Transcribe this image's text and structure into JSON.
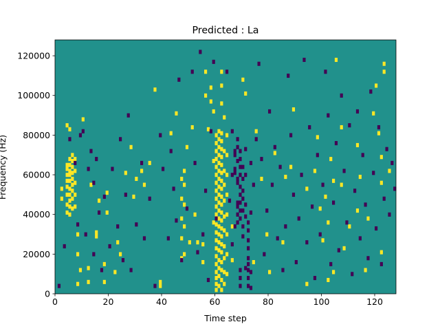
{
  "chart_data": {
    "type": "heatmap",
    "title": "Predicted : La",
    "xlabel": "Time step",
    "ylabel": "Frequency (Hz)",
    "xlim": [
      0,
      128
    ],
    "ylim": [
      0,
      128000
    ],
    "x_ticks": [
      0,
      20,
      40,
      60,
      80,
      100,
      120
    ],
    "y_ticks": [
      0,
      20000,
      40000,
      60000,
      80000,
      100000,
      120000
    ],
    "grid": false,
    "legend": "none",
    "colormap": "viridis",
    "colors": {
      "low": "#440154",
      "mid": "#21918c",
      "high": "#fde725"
    },
    "background_level": 0.5,
    "high_cells": [
      [
        2,
        48
      ],
      [
        2,
        53
      ],
      [
        4,
        41
      ],
      [
        4,
        45
      ],
      [
        4,
        50
      ],
      [
        4,
        54
      ],
      [
        4,
        57
      ],
      [
        4,
        60
      ],
      [
        4,
        63
      ],
      [
        4,
        65
      ],
      [
        4,
        85
      ],
      [
        5,
        40
      ],
      [
        5,
        44
      ],
      [
        5,
        47
      ],
      [
        5,
        50
      ],
      [
        5,
        53
      ],
      [
        5,
        57
      ],
      [
        5,
        60
      ],
      [
        5,
        62
      ],
      [
        5,
        65
      ],
      [
        5,
        68
      ],
      [
        5,
        83
      ],
      [
        6,
        43
      ],
      [
        6,
        48
      ],
      [
        6,
        52
      ],
      [
        6,
        55
      ],
      [
        6,
        58
      ],
      [
        6,
        61
      ],
      [
        6,
        64
      ],
      [
        6,
        67
      ],
      [
        6,
        70
      ],
      [
        7,
        44
      ],
      [
        7,
        50
      ],
      [
        7,
        56
      ],
      [
        7,
        62
      ],
      [
        7,
        68
      ],
      [
        8,
        5
      ],
      [
        8,
        20
      ],
      [
        8,
        30
      ],
      [
        9,
        12
      ],
      [
        10,
        88
      ],
      [
        12,
        6
      ],
      [
        12,
        13
      ],
      [
        13,
        55
      ],
      [
        15,
        31
      ],
      [
        15,
        29
      ],
      [
        16,
        47
      ],
      [
        18,
        6
      ],
      [
        18,
        15
      ],
      [
        19,
        51
      ],
      [
        19,
        41
      ],
      [
        22,
        11
      ],
      [
        23,
        26
      ],
      [
        24,
        20
      ],
      [
        26,
        61
      ],
      [
        28,
        74
      ],
      [
        29,
        49
      ],
      [
        30,
        58
      ],
      [
        32,
        62
      ],
      [
        33,
        55
      ],
      [
        35,
        66
      ],
      [
        37,
        103
      ],
      [
        39,
        6
      ],
      [
        39,
        4
      ],
      [
        43,
        81
      ],
      [
        45,
        91
      ],
      [
        47,
        18
      ],
      [
        47,
        28
      ],
      [
        47,
        38
      ],
      [
        47,
        48
      ],
      [
        47,
        58
      ],
      [
        48,
        20
      ],
      [
        48,
        34
      ],
      [
        48,
        45
      ],
      [
        48,
        55
      ],
      [
        48,
        62
      ],
      [
        49,
        74
      ],
      [
        50,
        26
      ],
      [
        51,
        84
      ],
      [
        52,
        40
      ],
      [
        53,
        26
      ],
      [
        55,
        16
      ],
      [
        55,
        25
      ],
      [
        56,
        100
      ],
      [
        56,
        112
      ],
      [
        57,
        83
      ],
      [
        58,
        97
      ],
      [
        58,
        104
      ],
      [
        59,
        36
      ],
      [
        59,
        92
      ],
      [
        59,
        67
      ],
      [
        60,
        2
      ],
      [
        60,
        5
      ],
      [
        60,
        8
      ],
      [
        60,
        11
      ],
      [
        60,
        15
      ],
      [
        60,
        19
      ],
      [
        60,
        23
      ],
      [
        60,
        27
      ],
      [
        60,
        31
      ],
      [
        60,
        35
      ],
      [
        60,
        40
      ],
      [
        60,
        44
      ],
      [
        60,
        48
      ],
      [
        60,
        52
      ],
      [
        60,
        56
      ],
      [
        60,
        60
      ],
      [
        60,
        64
      ],
      [
        60,
        68
      ],
      [
        60,
        72
      ],
      [
        60,
        76
      ],
      [
        60,
        80
      ],
      [
        61,
        4
      ],
      [
        61,
        9
      ],
      [
        61,
        13
      ],
      [
        61,
        17
      ],
      [
        61,
        22
      ],
      [
        61,
        26
      ],
      [
        61,
        30
      ],
      [
        61,
        34
      ],
      [
        61,
        38
      ],
      [
        61,
        42
      ],
      [
        61,
        46
      ],
      [
        61,
        50
      ],
      [
        61,
        54
      ],
      [
        61,
        58
      ],
      [
        61,
        62
      ],
      [
        61,
        66
      ],
      [
        61,
        70
      ],
      [
        61,
        74
      ],
      [
        61,
        78
      ],
      [
        61,
        82
      ],
      [
        62,
        2
      ],
      [
        62,
        7
      ],
      [
        62,
        12
      ],
      [
        62,
        16
      ],
      [
        62,
        21
      ],
      [
        62,
        25
      ],
      [
        62,
        29
      ],
      [
        62,
        33
      ],
      [
        62,
        37
      ],
      [
        62,
        41
      ],
      [
        62,
        45
      ],
      [
        62,
        49
      ],
      [
        62,
        53
      ],
      [
        62,
        57
      ],
      [
        62,
        61
      ],
      [
        62,
        65
      ],
      [
        62,
        69
      ],
      [
        62,
        73
      ],
      [
        62,
        77
      ],
      [
        62,
        81
      ],
      [
        62,
        96
      ],
      [
        62,
        105
      ],
      [
        62,
        112
      ],
      [
        63,
        5
      ],
      [
        63,
        11
      ],
      [
        63,
        18
      ],
      [
        63,
        24
      ],
      [
        63,
        32
      ],
      [
        63,
        39
      ],
      [
        63,
        47
      ],
      [
        63,
        55
      ],
      [
        63,
        62
      ],
      [
        63,
        72
      ],
      [
        63,
        89
      ],
      [
        64,
        10
      ],
      [
        64,
        20
      ],
      [
        64,
        30
      ],
      [
        64,
        40
      ],
      [
        64,
        50
      ],
      [
        64,
        60
      ],
      [
        64,
        70
      ],
      [
        64,
        80
      ],
      [
        66,
        17
      ],
      [
        66,
        34
      ],
      [
        70,
        108
      ],
      [
        71,
        101
      ],
      [
        74,
        16
      ],
      [
        75,
        82
      ],
      [
        77,
        58
      ],
      [
        79,
        30
      ],
      [
        80,
        11
      ],
      [
        82,
        71
      ],
      [
        85,
        26
      ],
      [
        86,
        59
      ],
      [
        88,
        64
      ],
      [
        89,
        93
      ],
      [
        94,
        5
      ],
      [
        94,
        53
      ],
      [
        97,
        62
      ],
      [
        98,
        79
      ],
      [
        99,
        43
      ],
      [
        100,
        27
      ],
      [
        101,
        49
      ],
      [
        102,
        7
      ],
      [
        102,
        36
      ],
      [
        103,
        68
      ],
      [
        104,
        11
      ],
      [
        104,
        57
      ],
      [
        105,
        118
      ],
      [
        107,
        84
      ],
      [
        107,
        55
      ],
      [
        108,
        23
      ],
      [
        110,
        34
      ],
      [
        113,
        75
      ],
      [
        113,
        42
      ],
      [
        114,
        59
      ],
      [
        116,
        12
      ],
      [
        117,
        38
      ],
      [
        119,
        91
      ],
      [
        120,
        105
      ],
      [
        121,
        81
      ],
      [
        122,
        69
      ],
      [
        122,
        56
      ],
      [
        122,
        21
      ],
      [
        123,
        116
      ],
      [
        123,
        112
      ],
      [
        125,
        62
      ]
    ],
    "low_cells": [
      [
        1,
        4
      ],
      [
        3,
        24
      ],
      [
        5,
        78
      ],
      [
        7,
        66
      ],
      [
        8,
        35
      ],
      [
        9,
        80
      ],
      [
        10,
        82
      ],
      [
        11,
        30
      ],
      [
        12,
        63
      ],
      [
        13,
        72
      ],
      [
        14,
        56
      ],
      [
        14,
        20
      ],
      [
        15,
        68
      ],
      [
        16,
        41
      ],
      [
        17,
        12
      ],
      [
        18,
        49
      ],
      [
        20,
        24
      ],
      [
        21,
        63
      ],
      [
        23,
        34
      ],
      [
        24,
        78
      ],
      [
        25,
        17
      ],
      [
        26,
        50
      ],
      [
        27,
        90
      ],
      [
        28,
        12
      ],
      [
        30,
        35
      ],
      [
        32,
        66
      ],
      [
        33,
        28
      ],
      [
        35,
        48
      ],
      [
        37,
        4
      ],
      [
        39,
        80
      ],
      [
        40,
        63
      ],
      [
        42,
        28
      ],
      [
        43,
        72
      ],
      [
        44,
        53
      ],
      [
        45,
        37
      ],
      [
        46,
        108
      ],
      [
        47,
        17
      ],
      [
        49,
        43
      ],
      [
        51,
        112
      ],
      [
        52,
        66
      ],
      [
        53,
        21
      ],
      [
        54,
        122
      ],
      [
        55,
        30
      ],
      [
        56,
        52
      ],
      [
        57,
        7
      ],
      [
        58,
        82
      ],
      [
        59,
        117
      ],
      [
        60,
        38
      ],
      [
        64,
        112
      ],
      [
        65,
        47
      ],
      [
        66,
        82
      ],
      [
        66,
        60
      ],
      [
        66,
        25
      ],
      [
        67,
        63
      ],
      [
        67,
        34
      ],
      [
        67,
        72
      ],
      [
        67,
        70
      ],
      [
        67,
        61
      ],
      [
        68,
        74
      ],
      [
        68,
        78
      ],
      [
        68,
        67
      ],
      [
        68,
        58
      ],
      [
        68,
        56
      ],
      [
        68,
        46
      ],
      [
        68,
        44
      ],
      [
        68,
        40
      ],
      [
        68,
        36
      ],
      [
        69,
        72
      ],
      [
        69,
        68
      ],
      [
        69,
        64
      ],
      [
        69,
        60
      ],
      [
        69,
        54
      ],
      [
        69,
        50
      ],
      [
        69,
        46
      ],
      [
        69,
        42
      ],
      [
        69,
        38
      ],
      [
        69,
        12
      ],
      [
        69,
        8
      ],
      [
        69,
        4
      ],
      [
        70,
        64
      ],
      [
        70,
        58
      ],
      [
        70,
        52
      ],
      [
        70,
        48
      ],
      [
        70,
        42
      ],
      [
        70,
        34
      ],
      [
        70,
        29
      ],
      [
        71,
        73
      ],
      [
        71,
        60
      ],
      [
        71,
        45
      ],
      [
        71,
        39
      ],
      [
        71,
        13
      ],
      [
        72,
        4
      ],
      [
        72,
        8
      ],
      [
        72,
        12
      ],
      [
        72,
        15
      ],
      [
        72,
        18
      ],
      [
        72,
        23
      ],
      [
        72,
        27
      ],
      [
        72,
        32
      ],
      [
        72,
        36
      ],
      [
        73,
        66
      ],
      [
        73,
        11
      ],
      [
        73,
        41
      ],
      [
        73,
        3
      ],
      [
        74,
        55
      ],
      [
        75,
        78
      ],
      [
        76,
        116
      ],
      [
        77,
        68
      ],
      [
        78,
        20
      ],
      [
        79,
        42
      ],
      [
        80,
        92
      ],
      [
        81,
        55
      ],
      [
        82,
        74
      ],
      [
        83,
        28
      ],
      [
        84,
        64
      ],
      [
        85,
        12
      ],
      [
        86,
        34
      ],
      [
        87,
        110
      ],
      [
        88,
        80
      ],
      [
        89,
        50
      ],
      [
        90,
        16
      ],
      [
        91,
        38
      ],
      [
        92,
        60
      ],
      [
        93,
        118
      ],
      [
        94,
        26
      ],
      [
        95,
        84
      ],
      [
        96,
        44
      ],
      [
        97,
        8
      ],
      [
        98,
        70
      ],
      [
        99,
        30
      ],
      [
        100,
        55
      ],
      [
        101,
        112
      ],
      [
        102,
        90
      ],
      [
        103,
        15
      ],
      [
        104,
        46
      ],
      [
        105,
        76
      ],
      [
        106,
        22
      ],
      [
        107,
        100
      ],
      [
        108,
        62
      ],
      [
        109,
        36
      ],
      [
        110,
        85
      ],
      [
        111,
        10
      ],
      [
        112,
        52
      ],
      [
        113,
        92
      ],
      [
        114,
        28
      ],
      [
        115,
        70
      ],
      [
        116,
        45
      ],
      [
        117,
        18
      ],
      [
        118,
        102
      ],
      [
        119,
        61
      ],
      [
        120,
        33
      ],
      [
        121,
        84
      ],
      [
        122,
        15
      ],
      [
        123,
        48
      ],
      [
        124,
        73
      ],
      [
        125,
        40
      ],
      [
        126,
        66
      ],
      [
        127,
        53
      ]
    ]
  }
}
